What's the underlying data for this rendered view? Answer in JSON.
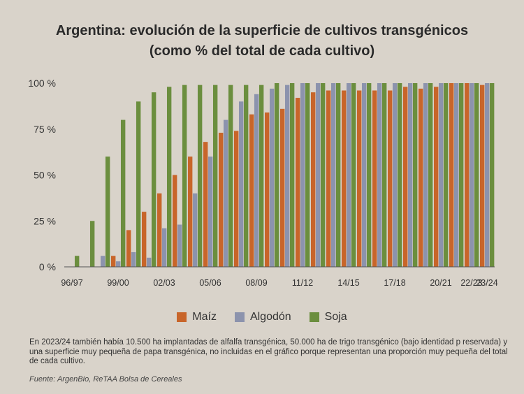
{
  "chart_data": {
    "type": "bar",
    "title": "Argentina: evolución de la superficie de cultivos transgénicos",
    "subtitle": "(como % del total de cada cultivo)",
    "categories": [
      "96/97",
      "97/98",
      "98/99",
      "99/00",
      "00/01",
      "01/02",
      "02/03",
      "03/04",
      "04/05",
      "05/06",
      "06/07",
      "07/08",
      "08/09",
      "09/10",
      "10/11",
      "11/12",
      "12/13",
      "13/14",
      "14/15",
      "15/16",
      "16/17",
      "17/18",
      "18/19",
      "19/20",
      "20/21",
      "21/22",
      "22/23",
      "23/24"
    ],
    "tick_labels": [
      "96/97",
      "99/00",
      "02/03",
      "05/06",
      "08/09",
      "11/12",
      "14/15",
      "17/18",
      "20/21",
      "22/23",
      "23/24"
    ],
    "y_ticks": [
      "100 %",
      "75 %",
      "50 %",
      "25 %",
      "0 %"
    ],
    "ylim": [
      0,
      100
    ],
    "series": [
      {
        "name": "Maíz",
        "color": "#c8652a",
        "values": [
          0,
          0,
          0,
          6,
          20,
          30,
          40,
          50,
          60,
          68,
          73,
          74,
          83,
          84,
          86,
          92,
          95,
          96,
          96,
          96,
          96,
          96,
          98,
          97,
          98,
          100,
          100,
          99
        ]
      },
      {
        "name": "Algodón",
        "color": "#8c93ad",
        "values": [
          0,
          0,
          6,
          3,
          8,
          5,
          21,
          23,
          40,
          60,
          80,
          90,
          94,
          97,
          99,
          100,
          100,
          100,
          100,
          100,
          100,
          100,
          100,
          100,
          100,
          100,
          100,
          100
        ]
      },
      {
        "name": "Soja",
        "color": "#6b8e3e",
        "values": [
          6,
          25,
          60,
          80,
          90,
          95,
          98,
          99,
          99,
          99,
          99,
          99,
          99,
          100,
          100,
          100,
          100,
          100,
          100,
          100,
          100,
          100,
          100,
          100,
          100,
          100,
          100,
          100
        ]
      }
    ],
    "xlabel": "",
    "ylabel": ""
  },
  "note": "En 2023/24 también había 10.500 ha implantadas de alfalfa transgénica, 50.000 ha de trigo transgénico (bajo identidad p reservada) y una superficie muy pequeña de papa transgénica, no incluidas en el gráfico porque representan una proporción muy pequeña del total de cada cultivo.",
  "source": "Fuente: ArgenBio, ReTAA Bolsa de Cereales"
}
